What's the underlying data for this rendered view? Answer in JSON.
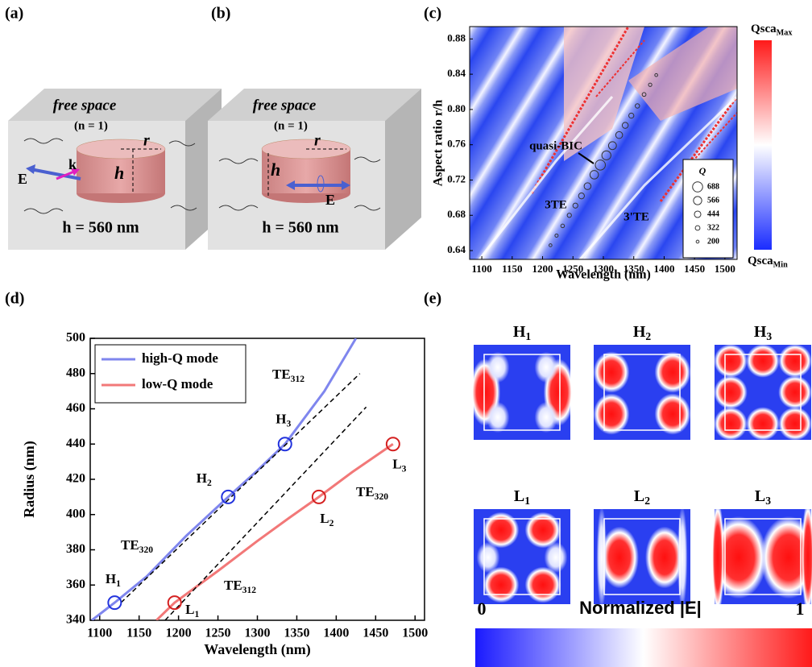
{
  "panel_labels": [
    "(a)",
    "(b)",
    "(c)",
    "(d)",
    "(e)"
  ],
  "panel_a": {
    "medium": "free space",
    "index": "(n = 1)",
    "r": "r",
    "h": "h",
    "k": "k",
    "E": "E",
    "height": "h = 560 nm"
  },
  "panel_b": {
    "medium": "free space",
    "index": "(n = 1)",
    "r": "r",
    "h": "h",
    "E": "E",
    "height": "h = 560 nm"
  },
  "chart_data": [
    {
      "type": "scatter",
      "xlabel": "Wavelength (nm)",
      "ylabel": "Aspect ratio r/h",
      "xlim": [
        1080,
        1520
      ],
      "ylim": [
        0.63,
        0.894
      ],
      "xticks": [
        1100,
        1150,
        1200,
        1250,
        1300,
        1350,
        1400,
        1450,
        1500
      ],
      "yticks": [
        0.64,
        0.68,
        0.72,
        0.76,
        {
          "value": 0.8,
          "label": "0.80"
        },
        0.84,
        0.88
      ],
      "annotations": [
        "quasi-BIC",
        "3TE",
        "3'TE"
      ],
      "size_legend_title": "Q",
      "size_legend": [
        688,
        566,
        444,
        322,
        200
      ],
      "colorbar": {
        "max": {
          "text": "Qsca",
          "sub": "Max"
        },
        "min": {
          "text": "Qsca",
          "sub": "Min"
        },
        "colors": [
          "#ff1a1a",
          "#ffffff",
          "#1a2cff"
        ]
      },
      "series": [
        {
          "color": "#333333",
          "x": [
            1213,
            1223,
            1233,
            1244,
            1254,
            1264,
            1274,
            1285,
            1295,
            1305,
            1315,
            1326,
            1336,
            1346,
            1356,
            1367,
            1377,
            1387
          ],
          "values": [
            0.646,
            0.657,
            0.668,
            0.68,
            0.691,
            0.702,
            0.713,
            0.726,
            0.737,
            0.748,
            0.759,
            0.771,
            0.782,
            0.793,
            0.804,
            0.817,
            0.828,
            0.839
          ],
          "sizes": [
            200,
            220,
            250,
            290,
            340,
            400,
            470,
            580,
            688,
            620,
            540,
            470,
            410,
            350,
            300,
            260,
            230,
            200
          ]
        }
      ]
    },
    {
      "type": "line",
      "xlabel": "Wavelength (nm)",
      "ylabel": "Radius (nm)",
      "xlim": [
        1088,
        1512
      ],
      "ylim": [
        340,
        500
      ],
      "xticks": [
        1100,
        1150,
        1200,
        1250,
        1300,
        1350,
        1400,
        1450,
        1500
      ],
      "yticks": [
        340,
        360,
        380,
        400,
        420,
        440,
        460,
        480,
        500
      ],
      "legend": "upper left",
      "series": [
        {
          "name": "high-Q mode",
          "color": "#7f86ee",
          "x": [
            1090,
            1119,
            1160,
            1210,
            1263,
            1300,
            1335,
            1385,
            1425
          ],
          "values": [
            340,
            350,
            365,
            388,
            410,
            425,
            440,
            470,
            500
          ]
        },
        {
          "name": "low-Q mode",
          "color": "#f27878",
          "x": [
            1172,
            1195,
            1250,
            1300,
            1340,
            1378,
            1420,
            1472
          ],
          "values": [
            340,
            350,
            368,
            385,
            398,
            410,
            424,
            440
          ]
        },
        {
          "color": "#000000",
          "dash": true,
          "x": [
            1127,
            1430
          ],
          "values": [
            350,
            480
          ]
        },
        {
          "color": "#000000",
          "dash": true,
          "x": [
            1183,
            1438
          ],
          "values": [
            340,
            461
          ]
        }
      ],
      "points": [
        {
          "text": "H",
          "sub": "1",
          "x": 1119,
          "y": 350,
          "color": "#2233dd"
        },
        {
          "text": "H",
          "sub": "2",
          "x": 1263,
          "y": 410,
          "color": "#2233dd"
        },
        {
          "text": "H",
          "sub": "3",
          "x": 1335,
          "y": 440,
          "color": "#2233dd"
        },
        {
          "text": "L",
          "sub": "1",
          "x": 1195,
          "y": 350,
          "color": "#d42020"
        },
        {
          "text": "L",
          "sub": "2",
          "x": 1378,
          "y": 410,
          "color": "#d42020"
        },
        {
          "text": "L",
          "sub": "3",
          "x": 1472,
          "y": 440,
          "color": "#d42020"
        }
      ],
      "annotations": [
        {
          "text": "TE",
          "sub": "312"
        },
        {
          "text": "TE",
          "sub": "320"
        },
        {
          "text": "TE",
          "sub": "320"
        },
        {
          "text": "TE",
          "sub": "312"
        }
      ]
    }
  ],
  "panel_e": {
    "maps": [
      {
        "text": "H",
        "sub": "1"
      },
      {
        "text": "H",
        "sub": "2"
      },
      {
        "text": "H",
        "sub": "3"
      },
      {
        "text": "L",
        "sub": "1"
      },
      {
        "text": "L",
        "sub": "2"
      },
      {
        "text": "L",
        "sub": "3"
      }
    ],
    "colorbar_title": "Normalized |E|",
    "colorbar_min": "0",
    "colorbar_max": "1",
    "colors": [
      "#1a1aff",
      "#ffffff",
      "#ff1a1a"
    ]
  }
}
